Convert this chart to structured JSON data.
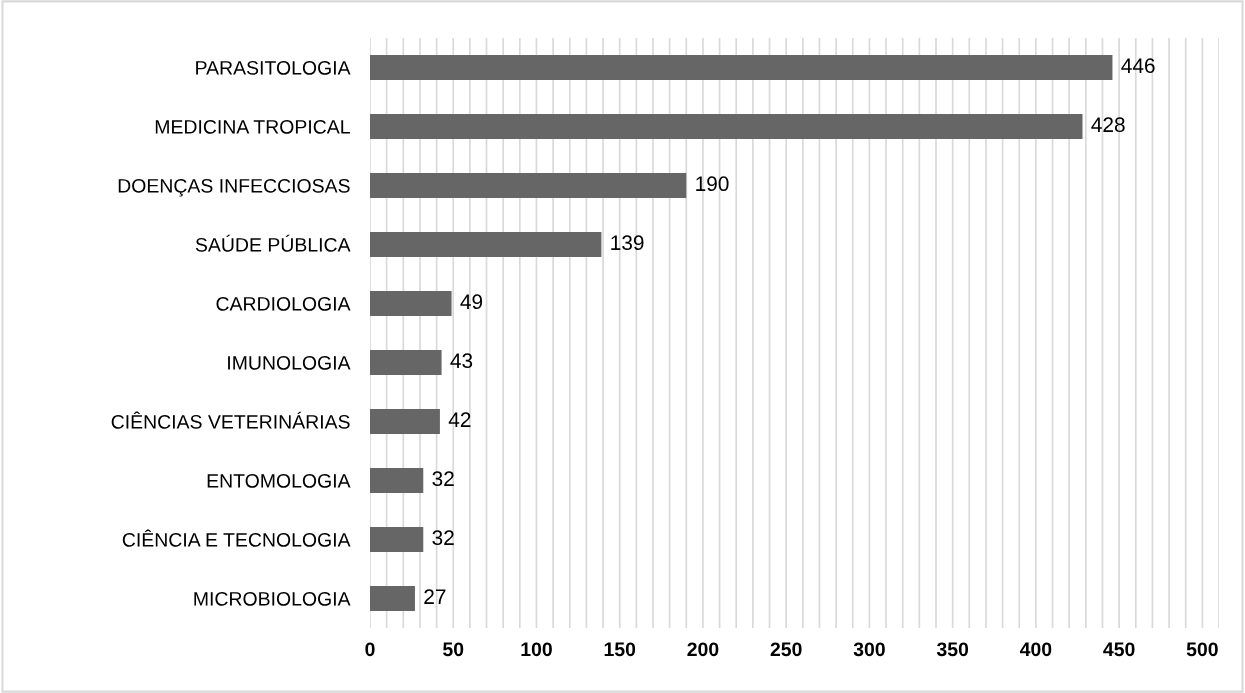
{
  "chart_data": {
    "type": "bar",
    "orientation": "horizontal",
    "categories": [
      "PARASITOLOGIA",
      "MEDICINA TROPICAL",
      "DOENÇAS INFECCIOSAS",
      "SAÚDE PÚBLICA",
      "CARDIOLOGIA",
      "IMUNOLOGIA",
      "CIÊNCIAS VETERINÁRIAS",
      "ENTOMOLOGIA",
      "CIÊNCIA E TECNOLOGIA",
      "MICROBIOLOGIA"
    ],
    "values": [
      446,
      428,
      190,
      139,
      49,
      43,
      42,
      32,
      32,
      27
    ],
    "color": "#666666",
    "data_labels": true,
    "grid": "x",
    "xlim": [
      0,
      510
    ],
    "xticks": [
      0,
      {
        "value": 10,
        "label": null
      },
      {
        "value": 20,
        "label": null
      },
      {
        "value": 30,
        "label": null
      },
      {
        "value": 40,
        "label": null
      },
      50,
      {
        "value": 60,
        "label": null
      },
      {
        "value": 70,
        "label": null
      },
      {
        "value": 80,
        "label": null
      },
      {
        "value": 90,
        "label": null
      },
      100,
      {
        "value": 110,
        "label": null
      },
      {
        "value": 120,
        "label": null
      },
      {
        "value": 130,
        "label": null
      },
      {
        "value": 140,
        "label": null
      },
      150,
      {
        "value": 160,
        "label": null
      },
      {
        "value": 170,
        "label": null
      },
      {
        "value": 180,
        "label": null
      },
      {
        "value": 190,
        "label": null
      },
      200,
      {
        "value": 210,
        "label": null
      },
      {
        "value": 220,
        "label": null
      },
      {
        "value": 230,
        "label": null
      },
      {
        "value": 240,
        "label": null
      },
      250,
      {
        "value": 260,
        "label": null
      },
      {
        "value": 270,
        "label": null
      },
      {
        "value": 280,
        "label": null
      },
      {
        "value": 290,
        "label": null
      },
      300,
      {
        "value": 310,
        "label": null
      },
      {
        "value": 320,
        "label": null
      },
      {
        "value": 330,
        "label": null
      },
      {
        "value": 340,
        "label": null
      },
      350,
      {
        "value": 360,
        "label": null
      },
      {
        "value": 370,
        "label": null
      },
      {
        "value": 380,
        "label": null
      },
      {
        "value": 390,
        "label": null
      },
      400,
      {
        "value": 410,
        "label": null
      },
      {
        "value": 420,
        "label": null
      },
      {
        "value": 430,
        "label": null
      },
      {
        "value": 440,
        "label": null
      },
      450,
      {
        "value": 460,
        "label": null
      },
      {
        "value": 470,
        "label": null
      },
      {
        "value": 480,
        "label": null
      },
      {
        "value": 490,
        "label": null
      },
      500,
      {
        "value": 510,
        "label": null
      }
    ]
  }
}
